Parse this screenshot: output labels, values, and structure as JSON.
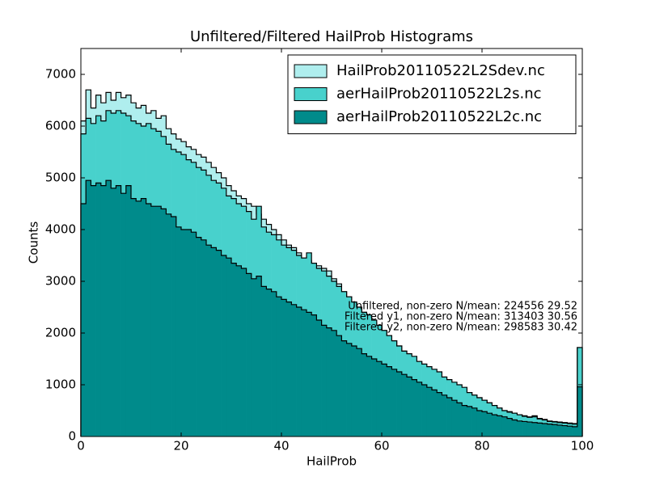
{
  "chart_data": {
    "type": "histogram",
    "title": "Unfiltered/Filtered HailProb Histograms",
    "xlabel": "HailProb",
    "ylabel": "Counts",
    "xlim": [
      0,
      100
    ],
    "ylim": [
      0,
      7500
    ],
    "xticks": [
      0,
      20,
      40,
      60,
      80,
      100
    ],
    "yticks": [
      0,
      1000,
      2000,
      3000,
      4000,
      5000,
      6000,
      7000
    ],
    "legend": "upper right",
    "annotations": [
      "Unfiltered, non-zero N/mean: 224556 29.52",
      "Filtered y1, non-zero N/mean: 313403 30.56",
      "Filtered y2, non-zero N/mean: 298583 30.42"
    ],
    "bins": [
      0,
      1,
      2,
      3,
      4,
      5,
      6,
      7,
      8,
      9,
      10,
      11,
      12,
      13,
      14,
      15,
      16,
      17,
      18,
      19,
      20,
      21,
      22,
      23,
      24,
      25,
      26,
      27,
      28,
      29,
      30,
      31,
      32,
      33,
      34,
      35,
      36,
      37,
      38,
      39,
      40,
      41,
      42,
      43,
      44,
      45,
      46,
      47,
      48,
      49,
      50,
      51,
      52,
      53,
      54,
      55,
      56,
      57,
      58,
      59,
      60,
      61,
      62,
      63,
      64,
      65,
      66,
      67,
      68,
      69,
      70,
      71,
      72,
      73,
      74,
      75,
      76,
      77,
      78,
      79,
      80,
      81,
      82,
      83,
      84,
      85,
      86,
      87,
      88,
      89,
      90,
      91,
      92,
      93,
      94,
      95,
      96,
      97,
      98,
      99,
      100
    ],
    "series": [
      {
        "name": "HailProb20110522L2Sdev.nc",
        "color": "#afeeee",
        "values": [
          6100,
          6700,
          6350,
          6600,
          6450,
          6650,
          6500,
          6650,
          6550,
          6600,
          6450,
          6350,
          6400,
          6250,
          6300,
          6150,
          6200,
          5950,
          5850,
          5750,
          5700,
          5600,
          5550,
          5450,
          5400,
          5300,
          5200,
          5100,
          5000,
          4850,
          4750,
          4650,
          4600,
          4500,
          4450,
          4300,
          4200,
          4100,
          4000,
          3900,
          3800,
          3700,
          3650,
          3550,
          3450,
          3400,
          3350,
          3300,
          3250,
          3200,
          3050,
          2950,
          2800,
          2700,
          2600,
          2500,
          2400,
          2300,
          2200,
          2100,
          2050,
          1950,
          1850,
          1750,
          1650,
          1550,
          1500,
          1450,
          1350,
          1300,
          1250,
          1200,
          1100,
          1050,
          1000,
          950,
          900,
          850,
          800,
          750,
          700,
          650,
          600,
          550,
          500,
          480,
          450,
          420,
          400,
          380,
          400,
          350,
          330,
          300,
          290,
          280,
          270,
          260,
          250,
          1720
        ]
      },
      {
        "name": "aerHailProb20110522L2s.nc",
        "color": "#48d1cc",
        "values": [
          5850,
          6150,
          6050,
          6200,
          6100,
          6300,
          6250,
          6300,
          6250,
          6200,
          6100,
          6050,
          6000,
          6050,
          5950,
          5900,
          5800,
          5650,
          5550,
          5500,
          5450,
          5350,
          5300,
          5200,
          5150,
          5050,
          4950,
          4900,
          4800,
          4650,
          4600,
          4500,
          4450,
          4350,
          4200,
          4450,
          4050,
          3950,
          3900,
          3800,
          3700,
          3650,
          3600,
          3500,
          3450,
          3550,
          3350,
          3250,
          3200,
          3100,
          3000,
          2900,
          2800,
          2700,
          2600,
          2500,
          2400,
          2350,
          2250,
          2150,
          2050,
          1950,
          1850,
          1750,
          1650,
          1600,
          1550,
          1450,
          1400,
          1350,
          1300,
          1250,
          1150,
          1100,
          1050,
          1000,
          950,
          850,
          800,
          750,
          700,
          650,
          600,
          550,
          500,
          470,
          450,
          420,
          390,
          370,
          380,
          340,
          320,
          290,
          280,
          270,
          260,
          250,
          240,
          1720
        ]
      },
      {
        "name": "aerHailProb20110522L2c.nc",
        "color": "#008b8b",
        "values": [
          4500,
          4950,
          4850,
          4900,
          4850,
          4950,
          4800,
          4850,
          4700,
          4850,
          4600,
          4550,
          4600,
          4500,
          4450,
          4450,
          4400,
          4300,
          4250,
          4050,
          4000,
          4000,
          3950,
          3850,
          3800,
          3700,
          3650,
          3600,
          3500,
          3450,
          3350,
          3300,
          3250,
          3150,
          3050,
          3100,
          2900,
          2850,
          2800,
          2700,
          2650,
          2600,
          2550,
          2500,
          2450,
          2400,
          2350,
          2250,
          2150,
          2100,
          2050,
          1950,
          1850,
          1800,
          1750,
          1700,
          1600,
          1550,
          1500,
          1450,
          1400,
          1350,
          1300,
          1250,
          1200,
          1150,
          1100,
          1050,
          1000,
          950,
          900,
          850,
          800,
          750,
          700,
          650,
          600,
          580,
          550,
          500,
          480,
          450,
          420,
          400,
          380,
          350,
          320,
          300,
          290,
          280,
          270,
          260,
          250,
          240,
          230,
          220,
          210,
          200,
          190,
          960
        ]
      }
    ]
  }
}
